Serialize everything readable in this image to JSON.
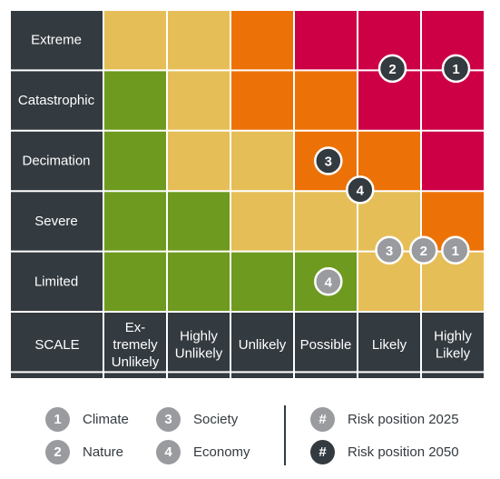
{
  "colors": {
    "header_bg": "#333a40",
    "header_text": "#ffffff",
    "green": "#6e9a1f",
    "yellow": "#e6be57",
    "orange": "#ec7207",
    "red": "#cd0046",
    "marker_2025": "#999b9e",
    "marker_2050": "#333a40",
    "grid_line": "#ffffff"
  },
  "matrix": {
    "scale_label": "SCALE",
    "rows": [
      "Extreme",
      "Catastrophic",
      "Decimation",
      "Severe",
      "Limited"
    ],
    "columns": [
      [
        "Ex-",
        "tremely",
        "Unlikely"
      ],
      [
        "Highly",
        "Unlikely"
      ],
      [
        "Unlikely"
      ],
      [
        "Possible"
      ],
      [
        "Likely"
      ],
      [
        "Highly",
        "Likely"
      ]
    ],
    "cells": [
      [
        "yellow",
        "yellow",
        "orange",
        "red",
        "red",
        "red"
      ],
      [
        "green",
        "yellow",
        "orange",
        "orange",
        "red",
        "red"
      ],
      [
        "green",
        "yellow",
        "yellow",
        "orange",
        "orange",
        "red"
      ],
      [
        "green",
        "green",
        "yellow",
        "yellow",
        "yellow",
        "orange"
      ],
      [
        "green",
        "green",
        "green",
        "green",
        "yellow",
        "yellow"
      ]
    ],
    "markers": [
      {
        "label": "2",
        "period": "2050",
        "col": 4.55,
        "row": 0.97
      },
      {
        "label": "1",
        "period": "2050",
        "col": 5.55,
        "row": 0.97
      },
      {
        "label": "3",
        "period": "2050",
        "col": 3.54,
        "row": 2.5
      },
      {
        "label": "4",
        "period": "2050",
        "col": 4.04,
        "row": 2.98
      },
      {
        "label": "3",
        "period": "2025",
        "col": 4.5,
        "row": 3.98
      },
      {
        "label": "2",
        "period": "2025",
        "col": 5.04,
        "row": 3.98
      },
      {
        "label": "1",
        "period": "2025",
        "col": 5.54,
        "row": 3.98
      },
      {
        "label": "4",
        "period": "2025",
        "col": 3.54,
        "row": 4.5
      }
    ]
  },
  "legend": {
    "items": [
      {
        "num": "1",
        "label": "Climate"
      },
      {
        "num": "2",
        "label": "Nature"
      },
      {
        "num": "3",
        "label": "Society"
      },
      {
        "num": "4",
        "label": "Economy"
      }
    ],
    "position_symbol": "#",
    "risk_2025": "Risk position 2025",
    "risk_2050": "Risk position 2050"
  }
}
